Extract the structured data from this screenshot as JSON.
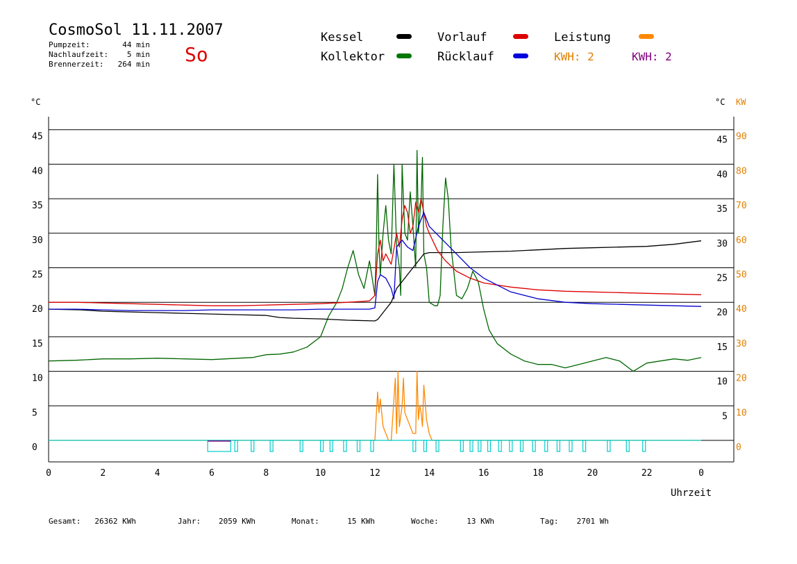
{
  "header": {
    "title": "CosmoSol 11.11.2007",
    "day": "So",
    "stats": [
      {
        "label": "Pumpzeit:",
        "value": "44 min"
      },
      {
        "label": "Nachlaufzeit:",
        "value": "5 min"
      },
      {
        "label": "Brennerzeit:",
        "value": "264 min"
      }
    ]
  },
  "legend": [
    {
      "name": "Kessel",
      "color": "#000000"
    },
    {
      "name": "Vorlauf",
      "color": "#dd0000"
    },
    {
      "name": "Leistung",
      "color": "#ff8800"
    },
    {
      "name": "Kollektor",
      "color": "#007700"
    },
    {
      "name": "Rücklauf",
      "color": "#0000dd"
    }
  ],
  "kwh_labels": [
    {
      "text": "KWH: 2",
      "color": "#e08000"
    },
    {
      "text": "KWH: 2",
      "color": "#800080"
    }
  ],
  "footer": [
    {
      "label": "Gesamt:",
      "value": "26362 KWh"
    },
    {
      "label": "Jahr:",
      "value": "2059 KWh"
    },
    {
      "label": "Monat:",
      "value": "15 KWh"
    },
    {
      "label": "Woche:",
      "value": "13 KWh"
    },
    {
      "label": "Tag:",
      "value": "2701 Wh"
    }
  ],
  "colors": {
    "kessel": "#000000",
    "vorlauf": "#dd0000",
    "ruecklauf": "#0000cc",
    "kollektor": "#006600",
    "leistung": "#ff8800",
    "purple": "#800080",
    "pump": "#00cccc",
    "kw_axis": "#e08000"
  },
  "chart_data": {
    "type": "line",
    "xlabel": "Uhrzeit",
    "left_unit": "°C",
    "right_unit_celsius": "°C",
    "right_unit_kw": "KW",
    "xlim": [
      0,
      24
    ],
    "ylim": [
      0,
      45
    ],
    "x_ticks": [
      "0",
      "2",
      "4",
      "6",
      "8",
      "10",
      "12",
      "14",
      "16",
      "18",
      "20",
      "22",
      "0"
    ],
    "y_ticks_left": [
      "0",
      "5",
      "10",
      "15",
      "20",
      "25",
      "30",
      "35",
      "40",
      "45"
    ],
    "y_ticks_right_celsius": [
      "5",
      "10",
      "15",
      "20",
      "25",
      "30",
      "35",
      "40",
      "45"
    ],
    "y_ticks_right_kw": [
      "0",
      "10",
      "20",
      "30",
      "40",
      "50",
      "60",
      "70",
      "80",
      "90"
    ],
    "grid": true,
    "series": [
      {
        "name": "Kessel",
        "x": [
          0,
          1.2,
          2,
          3,
          4,
          5,
          6,
          7,
          8,
          8.5,
          9,
          10,
          11,
          12,
          12.1,
          12.4,
          12.6,
          12.7,
          12.8,
          13,
          13.2,
          13.4,
          13.6,
          13.7,
          13.8,
          14,
          14.5,
          15,
          16,
          17,
          18,
          19,
          20,
          21,
          22,
          23,
          24
        ],
        "y": [
          19,
          18.9,
          18.7,
          18.6,
          18.5,
          18.4,
          18.3,
          18.2,
          18.1,
          17.8,
          17.7,
          17.6,
          17.4,
          17.3,
          17.5,
          19,
          20,
          21,
          22,
          23,
          24,
          25,
          26,
          26.5,
          27,
          27.2,
          27.2,
          27.2,
          27.3,
          27.4,
          27.6,
          27.8,
          27.9,
          28,
          28.1,
          28.4,
          28.9
        ]
      },
      {
        "name": "Vorlauf",
        "x": [
          0,
          1,
          2,
          3,
          4,
          5,
          6,
          7,
          8,
          9,
          10,
          11,
          11.8,
          12,
          12.1,
          12.2,
          12.3,
          12.4,
          12.6,
          12.8,
          12.9,
          13,
          13.1,
          13.2,
          13.3,
          13.4,
          13.5,
          13.6,
          13.7,
          13.8,
          13.9,
          14,
          14.3,
          14.6,
          15,
          15.5,
          16,
          17,
          18,
          19,
          20,
          21,
          22,
          23,
          24
        ],
        "y": [
          20,
          20,
          19.9,
          19.8,
          19.7,
          19.6,
          19.5,
          19.5,
          19.6,
          19.7,
          19.8,
          20,
          20.2,
          21,
          27,
          29,
          26,
          27,
          25.5,
          30,
          28,
          32,
          34,
          33,
          30,
          31,
          34.5,
          33,
          35,
          33,
          31,
          30,
          27.5,
          26,
          24.5,
          23.5,
          22.8,
          22.2,
          21.8,
          21.6,
          21.5,
          21.4,
          21.3,
          21.2,
          21.1
        ]
      },
      {
        "name": "Rücklauf",
        "x": [
          0,
          1,
          2,
          3,
          4,
          5,
          6,
          7,
          8,
          9,
          10,
          11,
          11.8,
          12,
          12.1,
          12.2,
          12.4,
          12.6,
          12.7,
          12.8,
          13,
          13.2,
          13.4,
          13.6,
          13.7,
          13.8,
          14,
          14.5,
          15,
          15.5,
          16,
          16.5,
          17,
          18,
          19,
          20,
          21,
          22,
          23,
          24
        ],
        "y": [
          19,
          19,
          18.9,
          18.8,
          18.8,
          18.8,
          18.9,
          18.9,
          18.9,
          18.9,
          19,
          19,
          19,
          19.2,
          23,
          24,
          23.5,
          22,
          20.5,
          28,
          29,
          28,
          27.5,
          31,
          32,
          33,
          31,
          29,
          27,
          25,
          23.5,
          22.5,
          21.5,
          20.5,
          20,
          19.8,
          19.7,
          19.6,
          19.5,
          19.4
        ]
      },
      {
        "name": "Kollektor",
        "x": [
          0,
          1,
          2,
          3,
          4,
          5,
          6,
          7,
          7.5,
          8,
          8.5,
          9,
          9.5,
          10,
          10.3,
          10.6,
          10.8,
          11,
          11.2,
          11.4,
          11.6,
          11.8,
          12,
          12.05,
          12.1,
          12.15,
          12.2,
          12.3,
          12.4,
          12.5,
          12.6,
          12.7,
          12.8,
          12.9,
          12.95,
          13,
          13.05,
          13.1,
          13.2,
          13.3,
          13.4,
          13.5,
          13.55,
          13.6,
          13.7,
          13.75,
          13.8,
          13.9,
          14,
          14.2,
          14.3,
          14.4,
          14.5,
          14.6,
          14.7,
          14.8,
          15,
          15.2,
          15.4,
          15.6,
          15.8,
          16,
          16.2,
          16.5,
          17,
          17.5,
          18,
          18.5,
          19,
          19.5,
          20,
          20.5,
          21,
          21.5,
          22,
          22.5,
          23,
          23.5,
          24
        ],
        "y": [
          11.5,
          11.6,
          11.8,
          11.8,
          11.9,
          11.8,
          11.7,
          11.9,
          12,
          12.4,
          12.5,
          12.8,
          13.5,
          15,
          18,
          20,
          22,
          25,
          27.5,
          24,
          22,
          26,
          21,
          28,
          38.5,
          28,
          24,
          30,
          34,
          29,
          27,
          40,
          28,
          25,
          21,
          40,
          35,
          30,
          29,
          36,
          31,
          25,
          42,
          30,
          35,
          41,
          27,
          25,
          20,
          19.5,
          19.5,
          21,
          31,
          38,
          35,
          28,
          21,
          20.5,
          22,
          24.5,
          23,
          19,
          16,
          14,
          12.5,
          11.5,
          11,
          11,
          10.5,
          11,
          11.5,
          12,
          11.5,
          10,
          11.2,
          11.5,
          11.8,
          11.6,
          12
        ]
      },
      {
        "name": "Leistung",
        "unit": "KW",
        "x": [
          0,
          12,
          12.1,
          12.15,
          12.2,
          12.3,
          12.5,
          12.6,
          12.75,
          12.8,
          12.85,
          12.9,
          13,
          13.05,
          13.1,
          13.2,
          13.4,
          13.5,
          13.55,
          13.6,
          13.65,
          13.7,
          13.75,
          13.8,
          13.9,
          14,
          14.1,
          24
        ],
        "y": [
          0,
          0,
          7,
          4,
          6,
          2,
          0,
          0,
          9,
          1,
          10,
          2,
          5,
          9,
          4,
          3,
          1,
          1,
          10,
          3,
          5,
          4,
          2,
          8,
          3,
          1,
          0,
          0
        ]
      },
      {
        "name": "Pumpe",
        "x": [
          0,
          5.85,
          5.86,
          6.7,
          6.71,
          24
        ],
        "y": [
          0,
          0,
          1,
          1,
          0,
          0
        ]
      }
    ],
    "pump_pulses_h": [
      6.9,
      7.5,
      8.2,
      9.3,
      10.05,
      10.4,
      10.9,
      11.4,
      11.9,
      13.45,
      13.85,
      14.3,
      15.2,
      15.55,
      15.85,
      16.2,
      16.6,
      17,
      17.4,
      17.85,
      18.3,
      18.75,
      19.2,
      19.7,
      20.6,
      21.3,
      21.9
    ]
  }
}
